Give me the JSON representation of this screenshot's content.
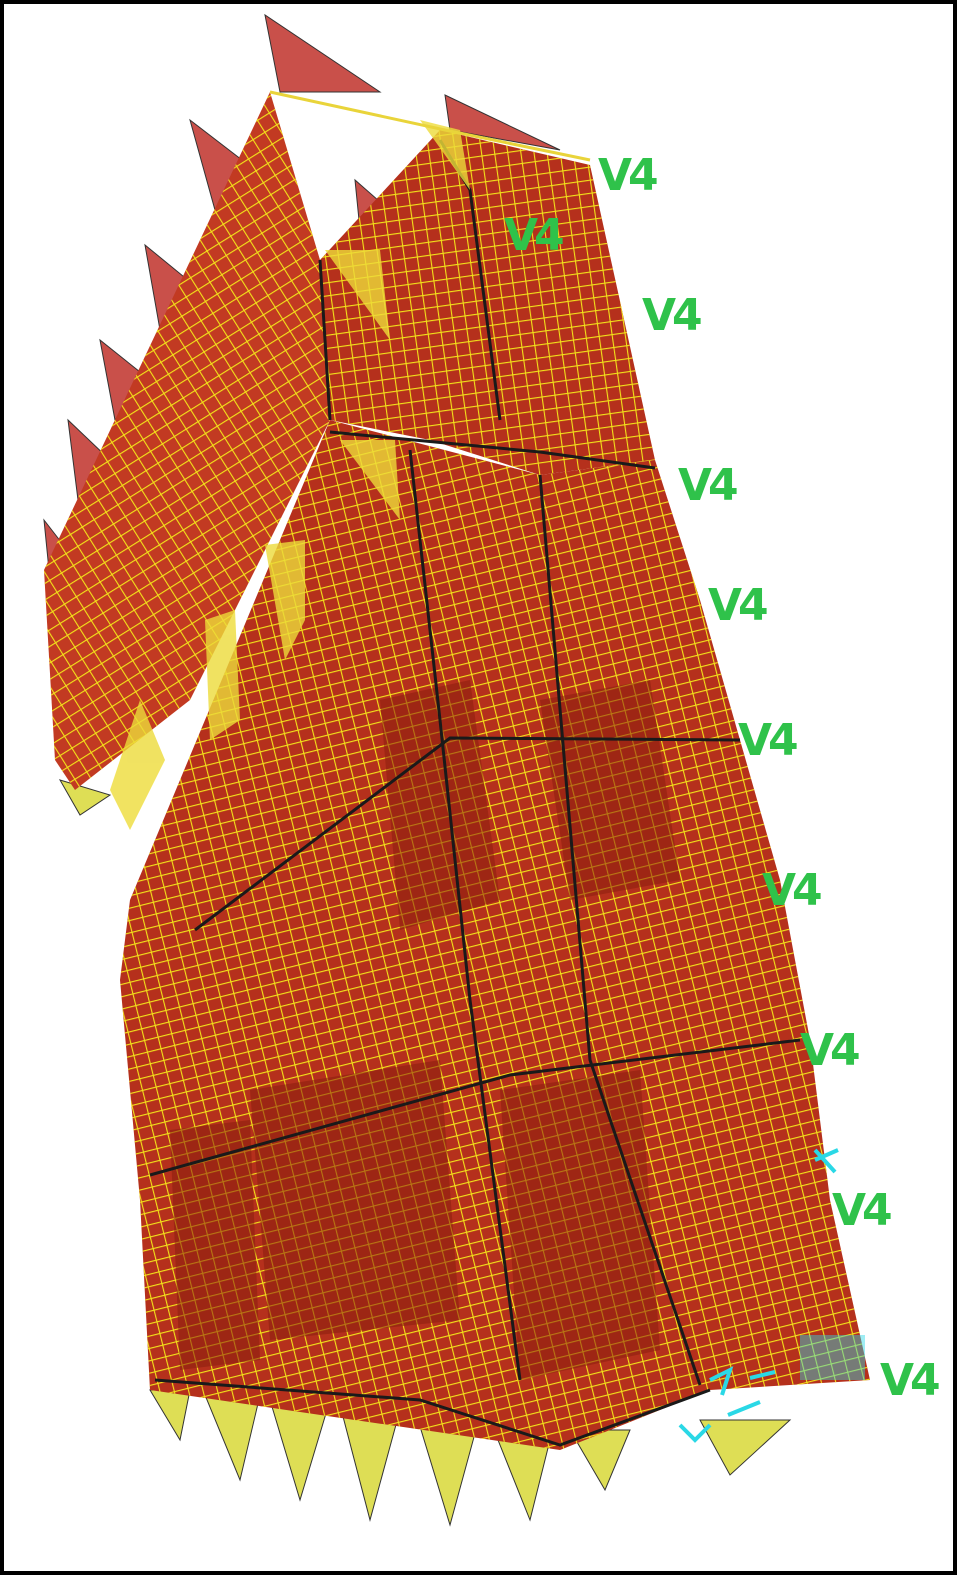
{
  "colors": {
    "background": "#ffffff",
    "border": "#000000",
    "wall_fill": "#b5301c",
    "mesh_line": "#f2e21a",
    "mesh_dark": "#8a1f0e",
    "load_red": "#c9504a",
    "load_yellow": "#dede55",
    "label_green": "#2fc24a",
    "support_cyan": "#2ad8e6"
  },
  "level_labels": [
    "V4",
    "V4",
    "V4",
    "V4",
    "V4",
    "V4",
    "V4",
    "V4",
    "V4",
    "V4"
  ]
}
